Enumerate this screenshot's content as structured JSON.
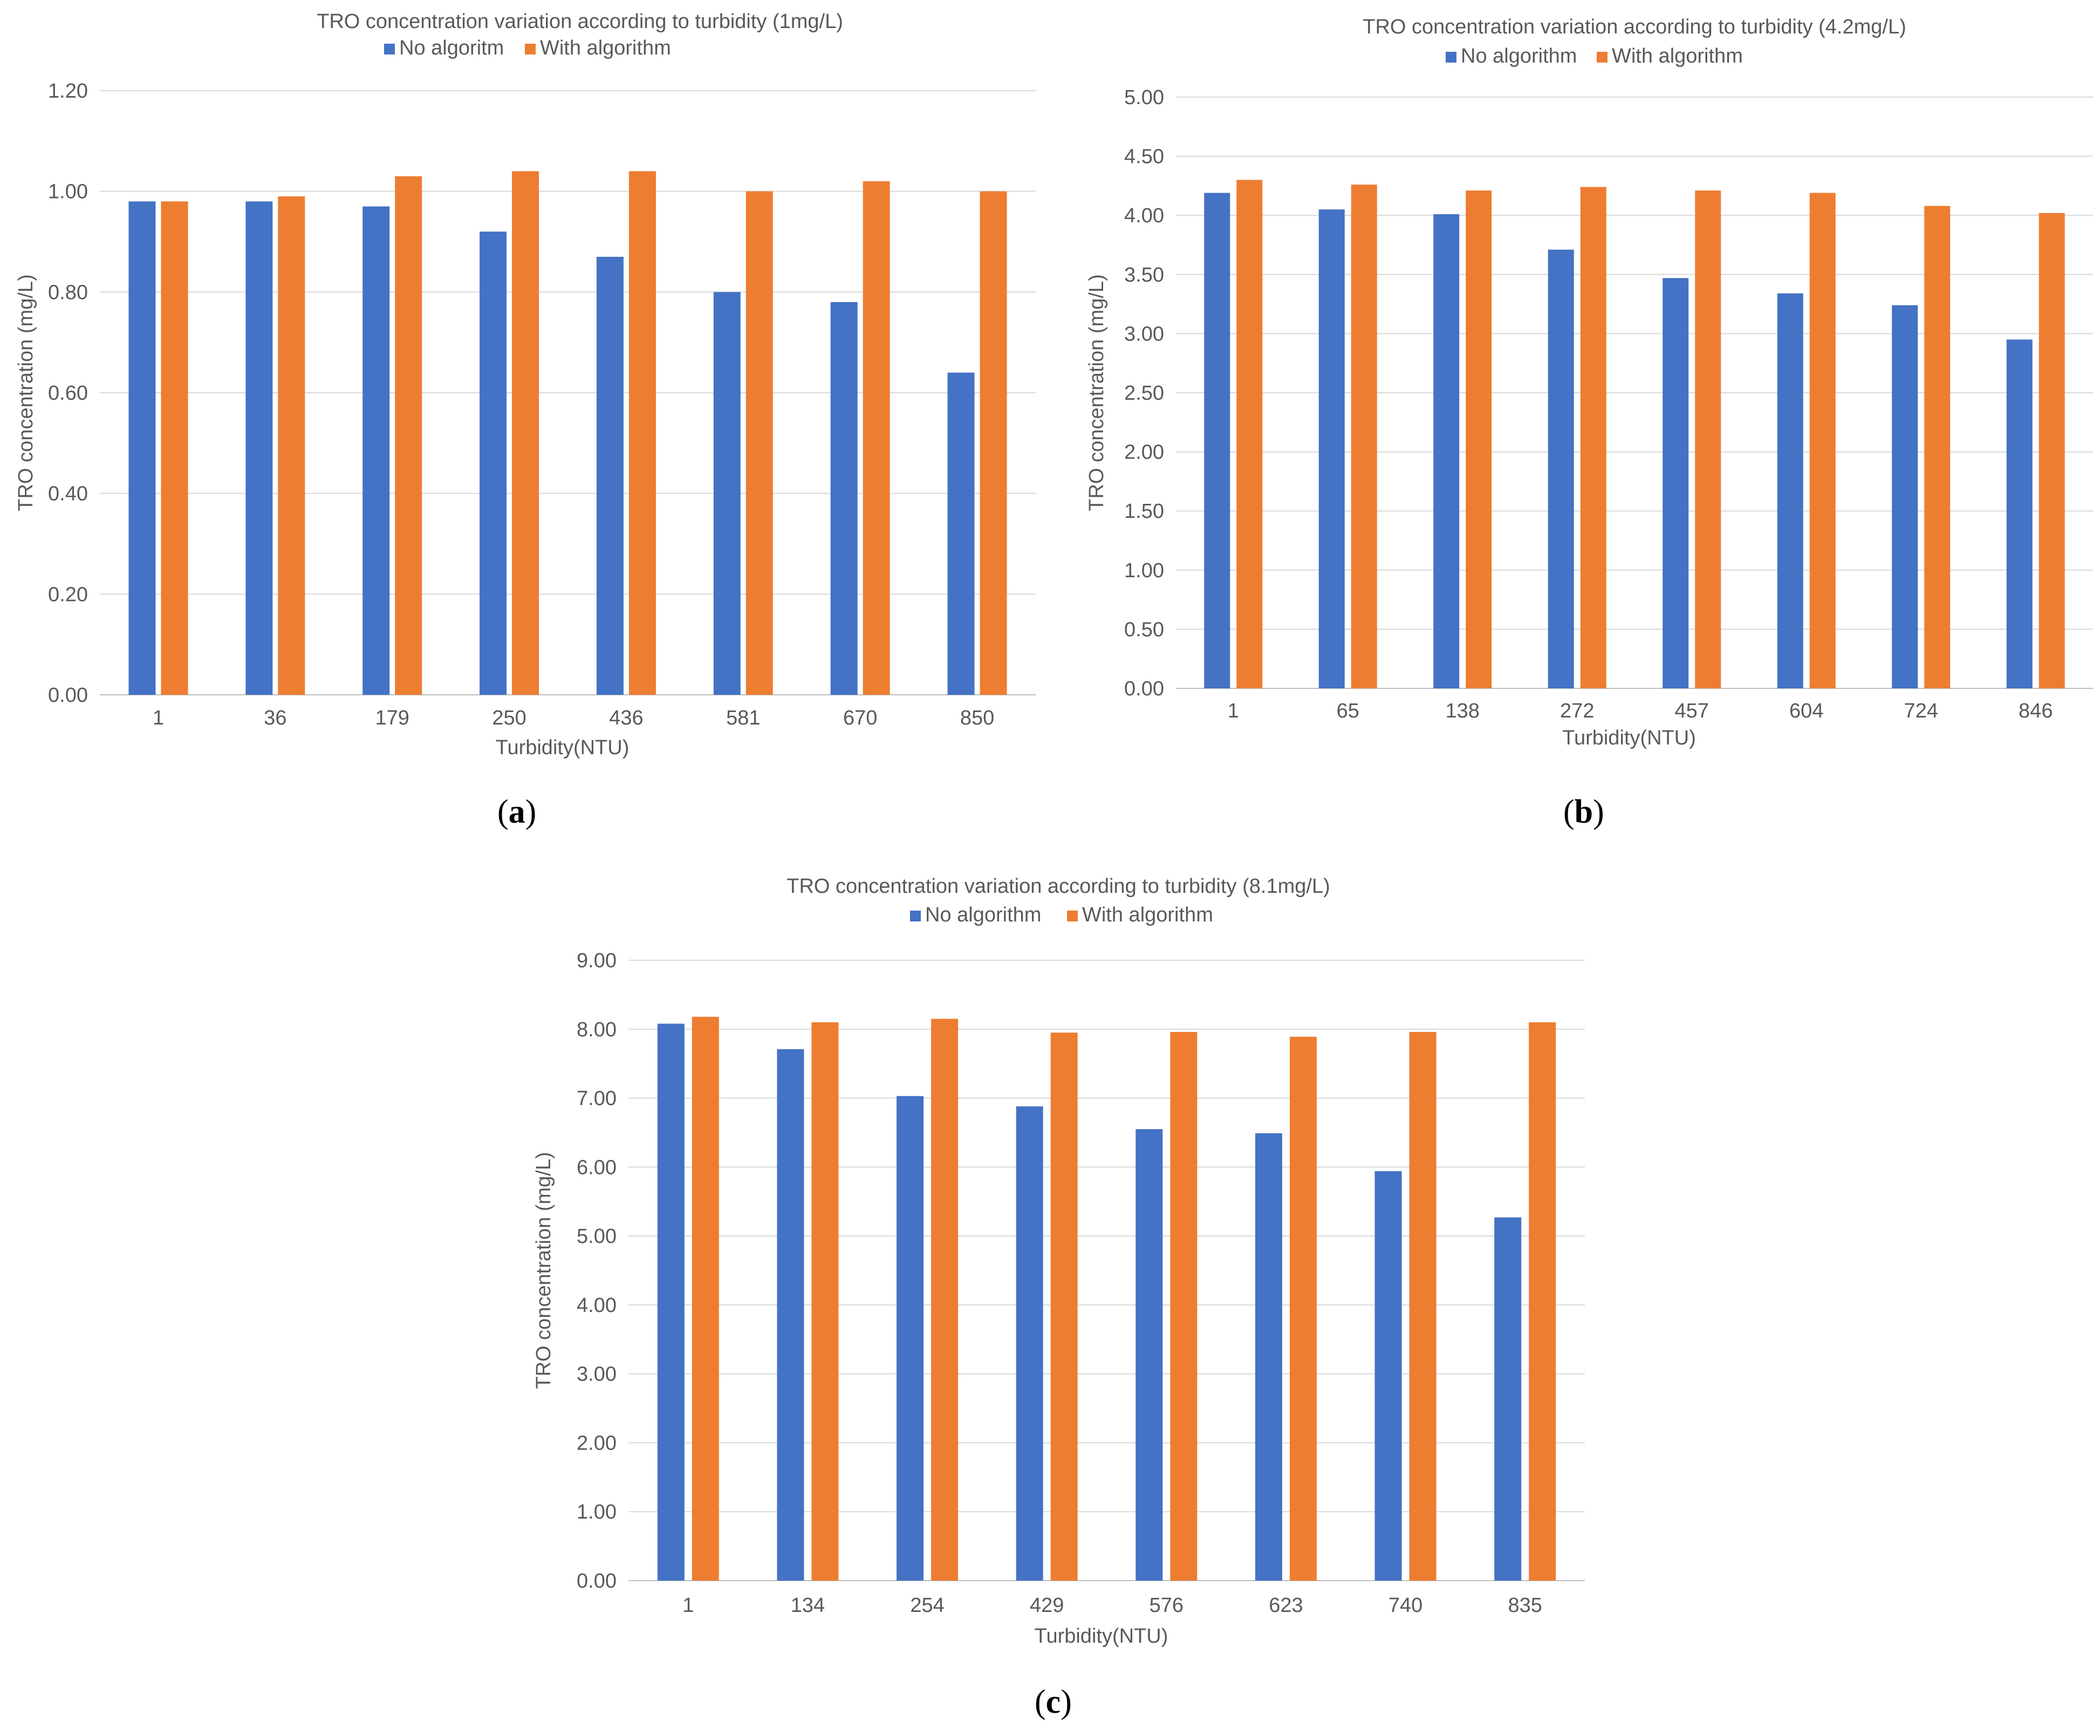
{
  "charts": [
    {
      "title": "TRO concentration variation according to turbidity (1mg/L)",
      "panel_letter": "a",
      "legend": [
        "No algoritm",
        "With algorithm"
      ]
    },
    {
      "title": "TRO concentration variation according to turbidity (4.2mg/L)",
      "panel_letter": "b",
      "legend": [
        "No algorithm",
        "With algorithm"
      ]
    },
    {
      "title": "TRO concentration variation according to turbidity (8.1mg/L)",
      "panel_letter": "c",
      "legend": [
        "No algorithm",
        "With algorithm"
      ]
    }
  ],
  "colors": {
    "no_algorithm": "#4472C4",
    "with_algorithm": "#ED7D31",
    "grid": "#D9D9D9",
    "text": "#595959"
  },
  "chart_data": [
    {
      "type": "bar",
      "title": "TRO concentration variation according to turbidity (1mg/L)",
      "xlabel": "Turbidity(NTU)",
      "ylabel": "TRO concentration (mg/L)",
      "categories": [
        "1",
        "36",
        "179",
        "250",
        "436",
        "581",
        "670",
        "850"
      ],
      "ylim": [
        0,
        1.2
      ],
      "yticks": [
        "0.00",
        "0.20",
        "0.40",
        "0.60",
        "0.80",
        "1.00",
        "1.20"
      ],
      "grid": true,
      "legend_position": "top-center",
      "series": [
        {
          "name": "No algoritm",
          "values": [
            0.98,
            0.98,
            0.97,
            0.92,
            0.87,
            0.8,
            0.78,
            0.64
          ]
        },
        {
          "name": "With algorithm",
          "values": [
            0.98,
            0.99,
            1.03,
            1.04,
            1.04,
            1.0,
            1.02,
            1.0
          ]
        }
      ]
    },
    {
      "type": "bar",
      "title": "TRO concentration variation according to turbidity (4.2mg/L)",
      "xlabel": "Turbidity(NTU)",
      "ylabel": "TRO concentration (mg/L)",
      "categories": [
        "1",
        "65",
        "138",
        "272",
        "457",
        "604",
        "724",
        "846"
      ],
      "ylim": [
        0,
        5.0
      ],
      "yticks": [
        "0.00",
        "0.50",
        "1.00",
        "1.50",
        "2.00",
        "2.50",
        "3.00",
        "3.50",
        "4.00",
        "4.50",
        "5.00"
      ],
      "grid": true,
      "legend_position": "top-center",
      "series": [
        {
          "name": "No algorithm",
          "values": [
            4.19,
            4.05,
            4.01,
            3.71,
            3.47,
            3.34,
            3.24,
            2.95
          ]
        },
        {
          "name": "With algorithm",
          "values": [
            4.3,
            4.26,
            4.21,
            4.24,
            4.21,
            4.19,
            4.08,
            4.02
          ]
        }
      ]
    },
    {
      "type": "bar",
      "title": "TRO concentration variation according to turbidity (8.1mg/L)",
      "xlabel": "Turbidity(NTU)",
      "ylabel": "TRO concentration (mg/L)",
      "categories": [
        "1",
        "134",
        "254",
        "429",
        "576",
        "623",
        "740",
        "835"
      ],
      "ylim": [
        0,
        9.0
      ],
      "yticks": [
        "0.00",
        "1.00",
        "2.00",
        "3.00",
        "4.00",
        "5.00",
        "6.00",
        "7.00",
        "8.00",
        "9.00"
      ],
      "grid": true,
      "legend_position": "top-center",
      "series": [
        {
          "name": "No algorithm",
          "values": [
            8.08,
            7.71,
            7.03,
            6.88,
            6.55,
            6.49,
            5.94,
            5.27
          ]
        },
        {
          "name": "With algorithm",
          "values": [
            8.18,
            8.1,
            8.15,
            7.95,
            7.96,
            7.89,
            7.96,
            8.1
          ]
        }
      ]
    }
  ]
}
